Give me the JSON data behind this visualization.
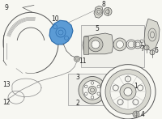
{
  "fig_bg": "#f7f7f2",
  "line_color": "#888888",
  "dark_line": "#555555",
  "highlight_color": "#5b9bd5",
  "highlight_edge": "#2a6aaa",
  "box_fill": "#f0f0eb",
  "box_edge": "#aaaaaa",
  "part_fill": "#d8d8d0",
  "label_fontsize": 5.5,
  "label_color": "#222222"
}
